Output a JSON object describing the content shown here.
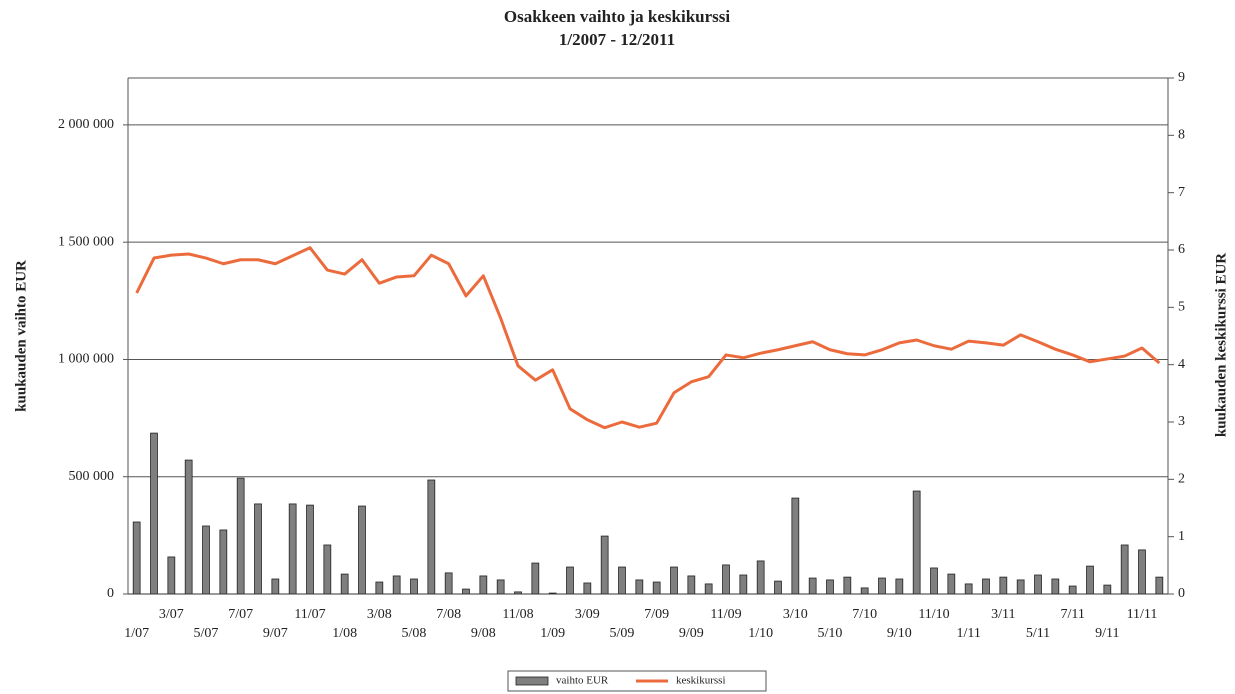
{
  "chart_data": {
    "type": "bar",
    "title": "Osakkeen vaihto ja keskikurssi",
    "subtitle": "1/2007 - 12/2011",
    "y_label": "kuukauden vaihto EUR",
    "y2_label": "kuukauden keskikurssi EUR",
    "categories": [
      "1/07",
      null,
      "3/07",
      null,
      "5/07",
      null,
      "7/07",
      null,
      "9/07",
      null,
      "11/07",
      null,
      "1/08",
      null,
      "3/08",
      null,
      "5/08",
      null,
      "7/08",
      null,
      "9/08",
      null,
      "11/08",
      null,
      "1/09",
      null,
      "3/09",
      null,
      "5/09",
      null,
      "7/09",
      null,
      "9/09",
      null,
      "11/09",
      null,
      "1/10",
      null,
      "3/10",
      null,
      "5/10",
      null,
      "7/10",
      null,
      "9/10",
      null,
      "11/10",
      null,
      "1/11",
      null,
      "3/11",
      null,
      "5/11",
      null,
      "7/11",
      null,
      "9/11",
      null,
      "11/11",
      null
    ],
    "series": [
      {
        "name": "vaihto EUR",
        "type": "bar",
        "axis": "y",
        "color": "#7f7f7f",
        "values": [
          307000,
          686000,
          158000,
          571000,
          290000,
          273000,
          494000,
          384000,
          64000,
          384000,
          379000,
          209000,
          85000,
          375000,
          51000,
          77000,
          64000,
          486000,
          90000,
          21000,
          77000,
          60000,
          9000,
          132000,
          4000,
          115000,
          47000,
          247000,
          115000,
          60000,
          51000,
          115000,
          77000,
          43000,
          124000,
          81000,
          141000,
          55000,
          409000,
          68000,
          60000,
          72000,
          26000,
          68000,
          64000,
          439000,
          111000,
          85000,
          43000,
          64000,
          72000,
          60000,
          81000,
          64000,
          34000,
          119000,
          38000,
          209000,
          188000,
          72000
        ]
      },
      {
        "name": "keskikurssi",
        "type": "line",
        "axis": "y2",
        "color": "#ec6b3c",
        "values": [
          5.25,
          5.86,
          5.91,
          5.93,
          5.86,
          5.76,
          5.83,
          5.83,
          5.76,
          5.9,
          6.04,
          5.65,
          5.58,
          5.83,
          5.42,
          5.53,
          5.55,
          5.91,
          5.76,
          5.2,
          5.55,
          4.81,
          3.98,
          3.73,
          3.91,
          3.23,
          3.04,
          2.9,
          3.0,
          2.91,
          2.98,
          3.51,
          3.7,
          3.79,
          4.17,
          4.12,
          4.2,
          4.26,
          4.33,
          4.4,
          4.26,
          4.19,
          4.17,
          4.26,
          4.38,
          4.43,
          4.33,
          4.27,
          4.41,
          4.38,
          4.34,
          4.52,
          4.4,
          4.27,
          4.17,
          4.05,
          4.1,
          4.15,
          4.29,
          4.03
        ]
      }
    ],
    "ylim": [
      0,
      2200000
    ],
    "yticks": [
      0,
      {
        "value": 500000,
        "label": "500 000"
      },
      {
        "value": 1000000,
        "label": "1 000 000"
      },
      {
        "value": 1500000,
        "label": "1 500 000"
      },
      {
        "value": 2000000,
        "label": "2 000 000"
      }
    ],
    "y2lim": [
      0,
      9
    ],
    "y2ticks": [
      0,
      1,
      2,
      3,
      4,
      5,
      6,
      7,
      8,
      9
    ],
    "grid": true,
    "legend": "bottom"
  }
}
